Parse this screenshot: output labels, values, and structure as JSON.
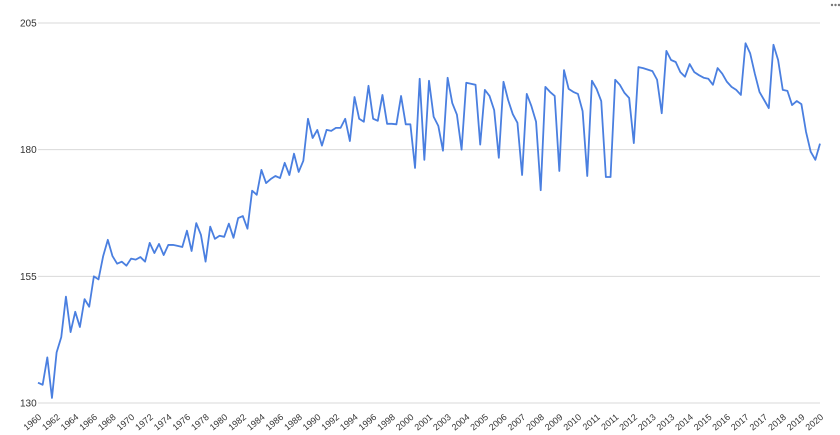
{
  "chart_data": {
    "type": "line",
    "categories": [
      "1960",
      null,
      null,
      null,
      "1962",
      null,
      null,
      null,
      "1964",
      null,
      null,
      null,
      "1966",
      null,
      null,
      null,
      "1968",
      null,
      null,
      null,
      "1970",
      null,
      null,
      null,
      "1972",
      null,
      null,
      null,
      "1974",
      null,
      null,
      null,
      "1976",
      null,
      null,
      null,
      "1978",
      null,
      null,
      null,
      "1980",
      null,
      null,
      null,
      "1982",
      null,
      null,
      null,
      "1984",
      null,
      null,
      null,
      "1986",
      null,
      null,
      null,
      "1988",
      null,
      null,
      null,
      "1990",
      null,
      null,
      null,
      "1992",
      null,
      null,
      null,
      "1994",
      null,
      null,
      null,
      "1996",
      null,
      null,
      null,
      "1998",
      null,
      null,
      null,
      "2000",
      null,
      null,
      null,
      "2001",
      null,
      null,
      null,
      "2003",
      null,
      null,
      null,
      "2004",
      null,
      null,
      null,
      "2005",
      null,
      null,
      null,
      "2006",
      null,
      null,
      null,
      "2007",
      null,
      null,
      null,
      "2008",
      null,
      null,
      null,
      "2009",
      null,
      null,
      null,
      "2010",
      null,
      null,
      null,
      "2011",
      null,
      null,
      null,
      "2011",
      null,
      null,
      null,
      "2012",
      null,
      null,
      null,
      "2013",
      null,
      null,
      null,
      "2013",
      null,
      null,
      null,
      "2014",
      null,
      null,
      null,
      "2015",
      null,
      null,
      null,
      "2016",
      null,
      null,
      null,
      "2017",
      null,
      null,
      null,
      "2017",
      null,
      null,
      null,
      "2018",
      null,
      null,
      null,
      "2019",
      null,
      null,
      null,
      "2020"
    ],
    "values": [
      134,
      133.6,
      139,
      131,
      140,
      143,
      151,
      144,
      148,
      145,
      150.5,
      149,
      155,
      154.4,
      159,
      162.2,
      159,
      157.5,
      157.9,
      157.1,
      158.5,
      158.3,
      158.8,
      157.9,
      161.6,
      159.6,
      161.4,
      159.2,
      161.2,
      161.2,
      161,
      160.8,
      164,
      160,
      165.5,
      163.2,
      157.9,
      164.8,
      162.4,
      163,
      162.8,
      165.4,
      162.6,
      166.5,
      166.9,
      164.4,
      171.9,
      171.1,
      176,
      173.4,
      174.2,
      174.8,
      174.4,
      177.4,
      175,
      179.2,
      175.6,
      177.8,
      186.1,
      182.3,
      183.9,
      180.8,
      183.9,
      183.7,
      184.3,
      184.3,
      186.1,
      181.7,
      190.4,
      186.1,
      185.5,
      192.6,
      186.1,
      185.7,
      190.8,
      185.1,
      185.1,
      185,
      190.6,
      185,
      185,
      176.4,
      194,
      178,
      193.6,
      186.5,
      184.7,
      179.8,
      194.2,
      189.2,
      186.9,
      180,
      193.2,
      193,
      192.8,
      181,
      191.8,
      190.6,
      187.8,
      178.4,
      193.4,
      189.8,
      187,
      185.3,
      175,
      191,
      188.6,
      185.5,
      172,
      192.4,
      191.4,
      190.6,
      175.8,
      195.7,
      192,
      191.4,
      191,
      187.6,
      174.8,
      193.6,
      192,
      189.6,
      174.6,
      174.6,
      193.8,
      192.8,
      191.2,
      190.2,
      181.3,
      196.3,
      196.1,
      195.8,
      195.5,
      193.8,
      187.2,
      199.5,
      197.7,
      197.3,
      195.3,
      194.4,
      196.9,
      195.3,
      194.7,
      194.2,
      194,
      192.8,
      196.1,
      195,
      193.4,
      192.4,
      191.8,
      190.8,
      201,
      199,
      195,
      191.4,
      189.8,
      188.2,
      200.7,
      197.7,
      191.8,
      191.6,
      188.8,
      189.6,
      189,
      183.5,
      179.6,
      178,
      181.2
    ],
    "color": "#4a7fe0",
    "ylim": [
      130,
      205
    ],
    "yticks": [
      130,
      155,
      180,
      205
    ],
    "grid": true
  }
}
